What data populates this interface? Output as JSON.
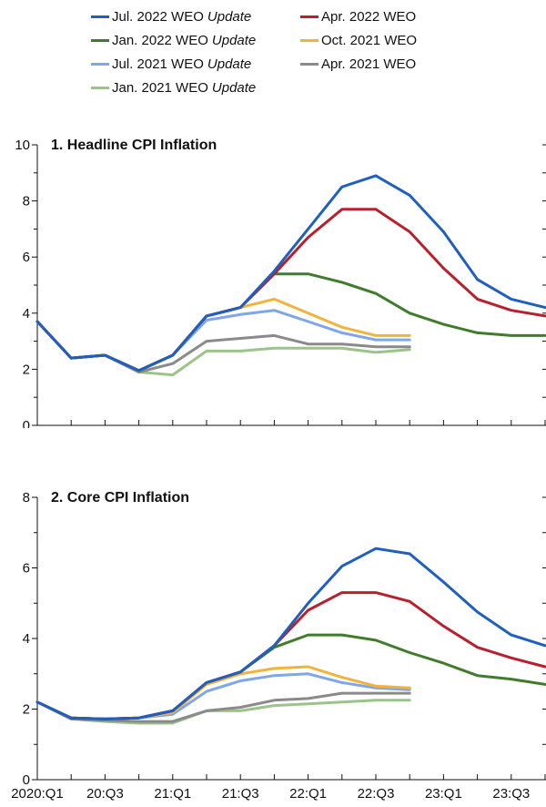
{
  "legend": [
    {
      "label": "Jul. 2022 WEO",
      "suffix": "Update",
      "color": "#1f5fc0"
    },
    {
      "label": "Apr. 2022 WEO",
      "suffix": "",
      "color": "#b8202e"
    },
    {
      "label": "Jan. 2022 WEO",
      "suffix": "Update",
      "color": "#3f7d2a"
    },
    {
      "label": "Oct. 2021 WEO",
      "suffix": "",
      "color": "#f2b33d"
    },
    {
      "label": "Jul. 2021 WEO",
      "suffix": "Update",
      "color": "#7ea6e8"
    },
    {
      "label": "Apr. 2021 WEO",
      "suffix": "",
      "color": "#8a8a8a"
    },
    {
      "label": "Jan. 2021 WEO",
      "suffix": "Update",
      "color": "#9cc48a"
    }
  ],
  "chart_data": [
    {
      "type": "line",
      "title": "1. Headline CPI Inflation",
      "x": [
        "2020:Q1",
        "20:Q2",
        "20:Q3",
        "20:Q4",
        "21:Q1",
        "21:Q2",
        "21:Q3",
        "21:Q4",
        "22:Q1",
        "22:Q2",
        "22:Q3",
        "22:Q4",
        "23:Q1",
        "23:Q2",
        "23:Q3",
        "23:Q4"
      ],
      "x_tick_labels": [
        "2020:Q1",
        "20:Q3",
        "21:Q1",
        "21:Q3",
        "22:Q1",
        "22:Q3",
        "23:Q1",
        "23:Q3"
      ],
      "y_tick_labels": [
        "0",
        "2",
        "4",
        "6",
        "8",
        "10"
      ],
      "ylim": [
        0,
        10
      ],
      "series": [
        {
          "name": "Jul. 2022 WEO Update",
          "values": [
            3.7,
            2.4,
            2.5,
            1.95,
            2.5,
            3.9,
            4.2,
            5.5,
            7.0,
            8.5,
            8.9,
            8.2,
            6.9,
            5.2,
            4.5,
            4.2
          ]
        },
        {
          "name": "Apr. 2022 WEO",
          "values": [
            3.7,
            2.4,
            2.5,
            1.95,
            2.5,
            3.9,
            4.2,
            5.4,
            6.7,
            7.7,
            7.7,
            6.9,
            5.6,
            4.5,
            4.1,
            3.9
          ]
        },
        {
          "name": "Jan. 2022 WEO Update",
          "values": [
            3.7,
            2.4,
            2.5,
            1.95,
            2.5,
            3.9,
            4.2,
            5.4,
            5.4,
            5.1,
            4.7,
            4.0,
            3.6,
            3.3,
            3.2,
            3.2
          ]
        },
        {
          "name": "Oct. 2021 WEO",
          "values": [
            3.7,
            2.4,
            2.5,
            1.95,
            2.5,
            3.9,
            4.2,
            4.5,
            4.0,
            3.5,
            3.2,
            3.2,
            null,
            null,
            null,
            null
          ]
        },
        {
          "name": "Jul. 2021 WEO Update",
          "values": [
            3.7,
            2.4,
            2.5,
            1.95,
            2.5,
            3.75,
            3.95,
            4.1,
            3.7,
            3.3,
            3.05,
            3.05,
            null,
            null,
            null,
            null
          ]
        },
        {
          "name": "Apr. 2021 WEO",
          "values": [
            3.7,
            2.4,
            2.5,
            1.9,
            2.2,
            3.0,
            3.1,
            3.2,
            2.9,
            2.9,
            2.8,
            2.8,
            null,
            null,
            null,
            null
          ]
        },
        {
          "name": "Jan. 2021 WEO Update",
          "values": [
            3.7,
            2.4,
            2.5,
            1.9,
            1.8,
            2.65,
            2.65,
            2.75,
            2.75,
            2.75,
            2.6,
            2.7,
            null,
            null,
            null,
            null
          ]
        }
      ]
    },
    {
      "type": "line",
      "title": "2. Core CPI Inflation",
      "x": [
        "2020:Q1",
        "20:Q2",
        "20:Q3",
        "20:Q4",
        "21:Q1",
        "21:Q2",
        "21:Q3",
        "21:Q4",
        "22:Q1",
        "22:Q2",
        "22:Q3",
        "22:Q4",
        "23:Q1",
        "23:Q2",
        "23:Q3",
        "23:Q4"
      ],
      "x_tick_labels": [
        "2020:Q1",
        "20:Q3",
        "21:Q1",
        "21:Q3",
        "22:Q1",
        "22:Q3",
        "23:Q1",
        "23:Q3"
      ],
      "y_tick_labels": [
        "0",
        "2",
        "4",
        "6",
        "8"
      ],
      "ylim": [
        0,
        8
      ],
      "series": [
        {
          "name": "Jul. 2022 WEO Update",
          "values": [
            2.2,
            1.75,
            1.72,
            1.75,
            1.95,
            2.75,
            3.05,
            3.8,
            5.0,
            6.05,
            6.55,
            6.4,
            5.6,
            4.75,
            4.1,
            3.8
          ]
        },
        {
          "name": "Apr. 2022 WEO",
          "values": [
            2.2,
            1.75,
            1.72,
            1.75,
            1.95,
            2.75,
            3.05,
            3.8,
            4.8,
            5.3,
            5.3,
            5.05,
            4.35,
            3.75,
            3.45,
            3.2
          ]
        },
        {
          "name": "Jan. 2022 WEO Update",
          "values": [
            2.2,
            1.75,
            1.72,
            1.75,
            1.95,
            2.75,
            3.05,
            3.75,
            4.1,
            4.1,
            3.95,
            3.6,
            3.3,
            2.95,
            2.85,
            2.7
          ]
        },
        {
          "name": "Oct. 2021 WEO",
          "values": [
            2.2,
            1.75,
            1.72,
            1.75,
            1.9,
            2.7,
            3.0,
            3.15,
            3.2,
            2.9,
            2.65,
            2.6,
            null,
            null,
            null,
            null
          ]
        },
        {
          "name": "Jul. 2021 WEO Update",
          "values": [
            2.2,
            1.75,
            1.72,
            1.75,
            1.85,
            2.5,
            2.8,
            2.95,
            3.0,
            2.75,
            2.6,
            2.55,
            null,
            null,
            null,
            null
          ]
        },
        {
          "name": "Apr. 2021 WEO",
          "values": [
            2.2,
            1.72,
            1.68,
            1.65,
            1.65,
            1.95,
            2.05,
            2.25,
            2.3,
            2.45,
            2.45,
            2.45,
            null,
            null,
            null,
            null
          ]
        },
        {
          "name": "Jan. 2021 WEO Update",
          "values": [
            2.2,
            1.72,
            1.65,
            1.6,
            1.6,
            1.95,
            1.95,
            2.1,
            2.15,
            2.2,
            2.25,
            2.25,
            null,
            null,
            null,
            null
          ]
        }
      ]
    }
  ]
}
